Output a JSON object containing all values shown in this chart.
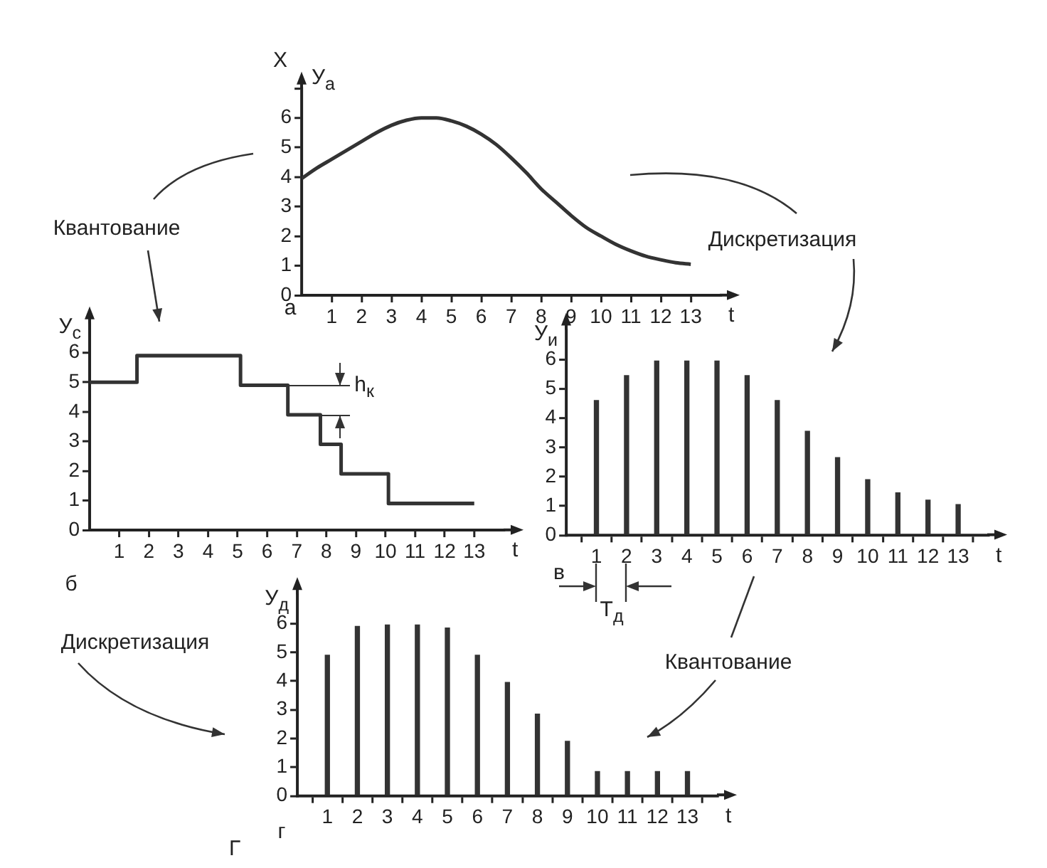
{
  "chart_data": [
    {
      "type": "line",
      "x": [
        0,
        0.5,
        1,
        1.5,
        2,
        2.5,
        3,
        3.5,
        4,
        4.5,
        5,
        5.5,
        6,
        6.5,
        7,
        7.5,
        8,
        8.5,
        9,
        9.5,
        10,
        10.5,
        11,
        11.5,
        12,
        12.5,
        13
      ],
      "values": [
        3.95,
        4.3,
        4.6,
        4.9,
        5.2,
        5.5,
        5.75,
        5.92,
        6.0,
        6.0,
        5.9,
        5.72,
        5.45,
        5.1,
        4.65,
        4.15,
        3.6,
        3.15,
        2.7,
        2.3,
        2.0,
        1.72,
        1.5,
        1.32,
        1.2,
        1.1,
        1.05
      ],
      "color": "#333333",
      "xlim": [
        0,
        14
      ],
      "xticks": [
        1,
        2,
        3,
        4,
        5,
        6,
        7,
        8,
        9,
        10,
        11,
        12,
        13
      ],
      "ylim": [
        0,
        7
      ],
      "yticks": [
        0,
        1,
        2,
        3,
        4,
        5,
        6,
        {
          "value": 7,
          "label": null
        }
      ],
      "ylabel": "У$_{а}$",
      "xlabel": "t",
      "grid": false,
      "annotations": [
        "X",
        "а",
        "Квантование",
        "Дискретизация"
      ]
    },
    {
      "type": "step",
      "x": [
        0,
        1.6,
        5.1,
        6.7,
        7.8,
        8.5,
        10.1,
        13
      ],
      "values": [
        5,
        5.9,
        4.9,
        3.9,
        2.9,
        1.9,
        0.9,
        0.9
      ],
      "color": "#333333",
      "xlim": [
        0,
        14
      ],
      "xticks": [
        1,
        2,
        3,
        4,
        5,
        6,
        7,
        8,
        9,
        10,
        11,
        12,
        13
      ],
      "ylim": [
        0,
        7
      ],
      "yticks": [
        0,
        1,
        2,
        3,
        4,
        5,
        6
      ],
      "ylabel": "У$_{с}$",
      "xlabel": "t",
      "grid": false,
      "annotations": [
        "б",
        {
          "text": "h$_{к}$",
          "x": 7.8,
          "y": 3.9
        },
        "Дискретизация"
      ]
    },
    {
      "type": "bar",
      "x": [
        1,
        2,
        3,
        4,
        5,
        6,
        7,
        8,
        9,
        10,
        11,
        12,
        13
      ],
      "values": [
        4.6,
        5.45,
        5.95,
        5.95,
        5.95,
        5.45,
        4.6,
        3.55,
        2.65,
        1.9,
        1.45,
        1.2,
        1.05
      ],
      "color": "#333333",
      "xlim": [
        0,
        14
      ],
      "xticks": [
        1,
        2,
        3,
        4,
        5,
        6,
        7,
        8,
        9,
        10,
        11,
        12,
        13
      ],
      "ylim": [
        0,
        7
      ],
      "yticks": [
        0,
        1,
        2,
        3,
        4,
        5,
        6
      ],
      "ylabel": "У$_{и}$",
      "xlabel": "t",
      "grid": false,
      "annotations": [
        "в",
        "T$_{д}$",
        "Квантование"
      ]
    },
    {
      "type": "bar",
      "x": [
        1,
        2,
        3,
        4,
        5,
        6,
        7,
        8,
        9,
        10,
        11,
        12,
        13
      ],
      "values": [
        4.9,
        5.9,
        5.95,
        5.95,
        5.85,
        4.9,
        3.95,
        2.85,
        1.9,
        0.85,
        0.85,
        0.85,
        0.85
      ],
      "color": "#333333",
      "xlim": [
        0,
        14
      ],
      "xticks": [
        1,
        2,
        3,
        4,
        5,
        6,
        7,
        8,
        9,
        10,
        11,
        12,
        13
      ],
      "ylim": [
        0,
        7
      ],
      "yticks": [
        0,
        1,
        2,
        3,
        4,
        5,
        6
      ],
      "ylabel": "У$_{д}$",
      "xlabel": "t",
      "grid": false,
      "annotations": [
        "г",
        "Г"
      ]
    }
  ]
}
